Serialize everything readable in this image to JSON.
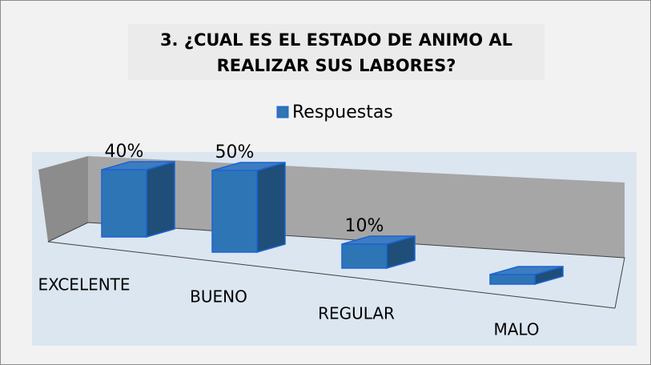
{
  "chart_data": {
    "type": "bar3d",
    "title": "3. ¿CUAL ES EL ESTADO DE ANIMO AL REALIZAR SUS LABORES?",
    "categories": [
      "EXCELENTE",
      "BUENO",
      "REGULAR",
      "MALO"
    ],
    "series": [
      {
        "name": "Respuestas",
        "color": "#2e75b6",
        "values": [
          40,
          50,
          10,
          0
        ],
        "value_labels": [
          "40%",
          "50%",
          "10%",
          null
        ]
      }
    ],
    "legend": "top"
  }
}
